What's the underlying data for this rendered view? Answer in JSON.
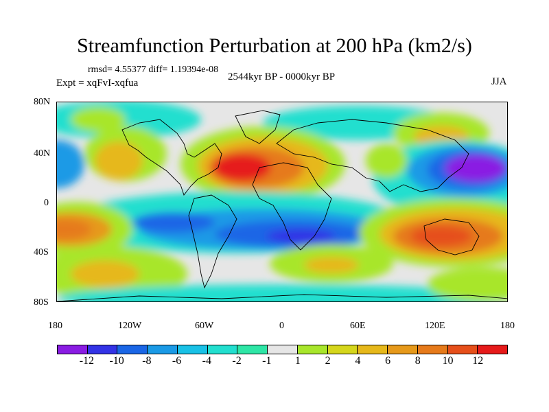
{
  "header": {
    "title": "Streamfunction Perturbation at 200 hPa (km2/s)",
    "stats": "rmsd= 4.55377 diff= 1.19394e-08",
    "experiment": "Expt = xqFvI-xqfua",
    "period": "2544kyr BP - 0000kyr BP",
    "season": "JJA"
  },
  "axes": {
    "y_ticks": [
      "80N",
      "40N",
      "0",
      "40S",
      "80S"
    ],
    "x_ticks": [
      "180",
      "120W",
      "60W",
      "0",
      "60E",
      "120E",
      "180"
    ]
  },
  "colorbar": {
    "colors": [
      "#8a1ce3",
      "#3333e6",
      "#1a66e6",
      "#1a9ae6",
      "#19c1e6",
      "#22dfcf",
      "#2ee6a6",
      "#e6e6e6",
      "#a8e62b",
      "#d5d61c",
      "#e6b81a",
      "#e6991a",
      "#e67a1a",
      "#e64f1a",
      "#e61a1a"
    ],
    "labels": [
      "-12",
      "-10",
      "-8",
      "-6",
      "-4",
      "-2",
      "-1",
      "1",
      "2",
      "4",
      "6",
      "8",
      "10",
      "12"
    ]
  },
  "map_features": [
    {
      "name": "atlantic-high",
      "value": 12
    },
    {
      "name": "australia-high",
      "value": 10
    },
    {
      "name": "pacific-west-high",
      "value": 8
    },
    {
      "name": "japan-low",
      "value": -12
    },
    {
      "name": "south-atlantic-low",
      "value": -10
    },
    {
      "name": "north-pacific-high",
      "value": 6
    }
  ]
}
